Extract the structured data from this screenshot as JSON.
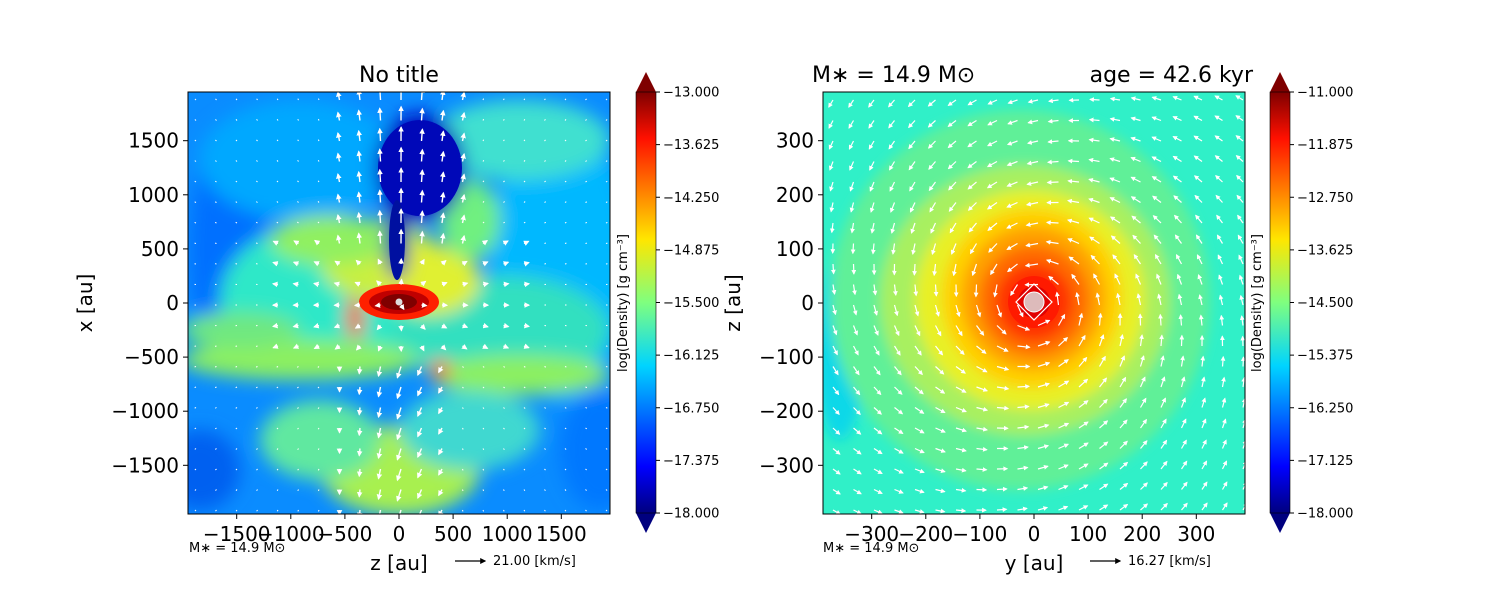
{
  "chart_data": [
    {
      "type": "heatmap",
      "title": "No title",
      "xlabel": "z [au]",
      "ylabel": "x [au]",
      "xlim": [
        -1950,
        1950
      ],
      "ylim": [
        -1950,
        1950
      ],
      "xticks": [
        -1500,
        -1000,
        -500,
        0,
        500,
        1000,
        1500
      ],
      "yticks": [
        -1500,
        -1000,
        -500,
        0,
        500,
        1000,
        1500
      ],
      "xtick_labels": [
        "−1500",
        "−1000",
        "−500",
        "0",
        "500",
        "1000",
        "1500"
      ],
      "ytick_labels": [
        "−1500",
        "−1000",
        "−500",
        "0",
        "500",
        "1000",
        "1500"
      ],
      "colorbar": {
        "label": "log(Density) [g cm⁻³]",
        "range": [
          -18.0,
          -13.0
        ],
        "ticks": [
          "−13.000",
          "−13.625",
          "−14.250",
          "−14.875",
          "−15.500",
          "−16.125",
          "−16.750",
          "−17.375",
          "−18.000"
        ]
      },
      "annotation": "M∗ = 14.9 M⊙",
      "quiver_key": "21.00 [km/s]"
    },
    {
      "type": "heatmap",
      "title_left": "M∗ = 14.9 M⊙",
      "title_right": "age = 42.6 kyr",
      "xlabel": "y [au]",
      "ylabel": "z [au]",
      "xlim": [
        -390,
        390
      ],
      "ylim": [
        -390,
        390
      ],
      "xticks": [
        -300,
        -200,
        -100,
        0,
        100,
        200,
        300
      ],
      "yticks": [
        -300,
        -200,
        -100,
        0,
        100,
        200,
        300
      ],
      "xtick_labels": [
        "−300",
        "−200",
        "−100",
        "0",
        "100",
        "200",
        "300"
      ],
      "ytick_labels": [
        "−300",
        "−200",
        "−100",
        "0",
        "100",
        "200",
        "300"
      ],
      "colorbar": {
        "label": "log(Density) [g cm⁻³]",
        "range": [
          -18.0,
          -11.0
        ],
        "ticks": [
          "−11.000",
          "−11.875",
          "−12.750",
          "−13.625",
          "−14.500",
          "−15.375",
          "−16.250",
          "−17.125",
          "−18.000"
        ]
      },
      "annotation": "M∗ = 14.9 M⊙",
      "quiver_key": "16.27 [km/s]"
    }
  ]
}
